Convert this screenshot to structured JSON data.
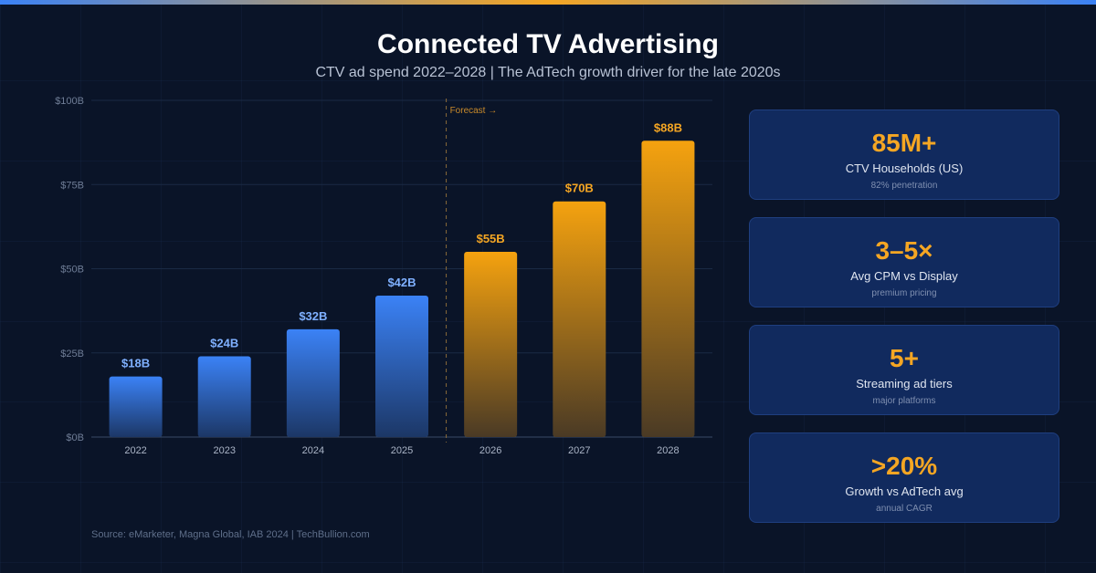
{
  "title": "Connected TV Advertising",
  "subtitle": "CTV ad spend 2022–2028 | The AdTech growth driver for the late 2020s",
  "chart_data": {
    "type": "bar",
    "categories": [
      "2022",
      "2023",
      "2024",
      "2025",
      "2026",
      "2027",
      "2028"
    ],
    "values": [
      18,
      24,
      32,
      42,
      55,
      70,
      88
    ],
    "data_labels": [
      "$18B",
      "$24B",
      "$32B",
      "$42B",
      "$55B",
      "$70B",
      "$88B"
    ],
    "forecast_from": "2026",
    "forecast_label": "Forecast →",
    "ylim": [
      0,
      100
    ],
    "yticks": [
      0,
      25,
      50,
      75,
      100
    ],
    "ytick_labels": [
      "$0B",
      "$25B",
      "$50B",
      "$75B",
      "$100B"
    ],
    "grid": true,
    "colors": {
      "actual": "#3b82f6",
      "forecast": "#f5a623"
    }
  },
  "cards": [
    {
      "value": "85M+",
      "label": "CTV Households (US)",
      "sub": "82% penetration"
    },
    {
      "value": "3–5×",
      "label": "Avg CPM vs Display",
      "sub": "premium pricing"
    },
    {
      "value": "5+",
      "label": "Streaming ad tiers",
      "sub": "major platforms"
    },
    {
      "value": ">20%",
      "label": "Growth vs AdTech avg",
      "sub": "annual CAGR"
    }
  ],
  "source": "Source: eMarketer, Magna Global, IAB 2024 | TechBullion.com"
}
